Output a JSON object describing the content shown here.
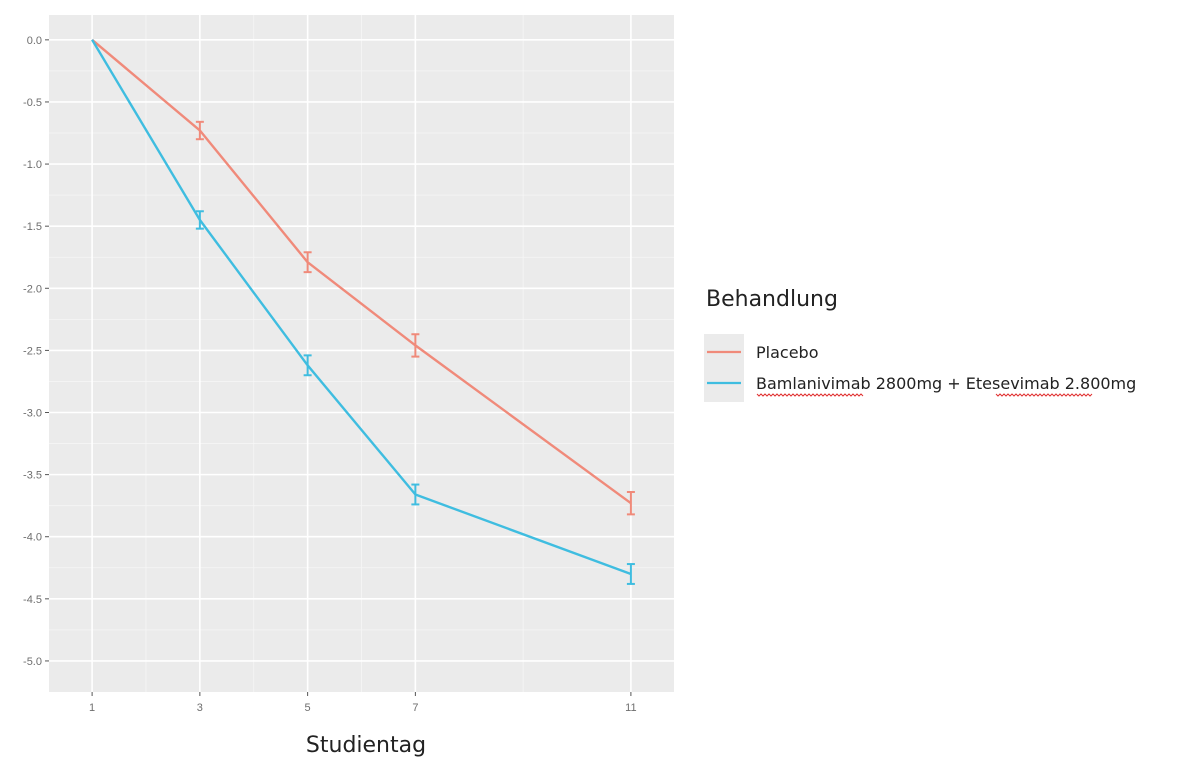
{
  "chart_data": {
    "type": "line",
    "title": "",
    "xlabel": "Studientag",
    "ylabel": "",
    "x": [
      1,
      3,
      5,
      7,
      11
    ],
    "x_tick_labels": [
      "1",
      "3",
      "5",
      "7",
      "11"
    ],
    "xlim": [
      0.2,
      11.8
    ],
    "ylim": [
      -5.25,
      0.2
    ],
    "y_ticks": [
      0.0,
      -0.5,
      -1.0,
      -1.5,
      -2.0,
      -2.5,
      -3.0,
      -3.5,
      -4.0,
      -4.5,
      -5.0
    ],
    "y_tick_labels": [
      "0.0",
      "-0.5",
      "-1.0",
      "-1.5",
      "-2.0",
      "-2.5",
      "-3.0",
      "-3.5",
      "-4.0",
      "-4.5",
      "-5.0"
    ],
    "grid": true,
    "legend": {
      "title": "Behandlung",
      "position": "right",
      "entries": [
        "Placebo",
        "Bamlanivimab 2800mg + Etesevimab 2.800mg"
      ]
    },
    "series": [
      {
        "name": "Placebo",
        "color": "#f08a7a",
        "values": [
          0.0,
          -0.73,
          -1.79,
          -2.46,
          -3.73
        ],
        "error": [
          0.0,
          0.07,
          0.08,
          0.09,
          0.09
        ]
      },
      {
        "name": "Bamlanivimab 2800mg + Etesevimab 2.800mg",
        "color": "#3fbde0",
        "values": [
          0.0,
          -1.45,
          -2.62,
          -3.66,
          -4.3
        ],
        "error": [
          0.0,
          0.07,
          0.08,
          0.08,
          0.08
        ]
      }
    ]
  }
}
